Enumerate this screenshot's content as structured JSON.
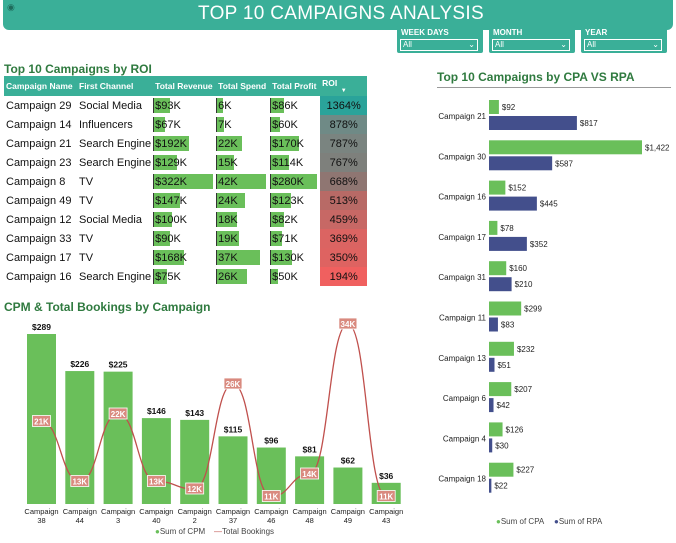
{
  "header": {
    "title": "TOP 10 CAMPAIGNS ANALYSIS"
  },
  "slicers": [
    {
      "label": "WEEK DAYS",
      "value": "All"
    },
    {
      "label": "MONTH",
      "value": "All"
    },
    {
      "label": "YEAR",
      "value": "All"
    }
  ],
  "roi_table": {
    "title": "Top 10 Campaigns by ROI",
    "columns": [
      "Campaign Name",
      "First Channel",
      "Total Revenue",
      "Total Spend",
      "Total Profit",
      "ROI"
    ],
    "rows": [
      {
        "name": "Campaign 29",
        "channel": "Social Media",
        "revenue": "$93K",
        "spend": "6K",
        "profit": "$86K",
        "roi": "1364%",
        "rev_v": 93,
        "spend_v": 6,
        "profit_v": 86,
        "roi_color": "#2aa39a"
      },
      {
        "name": "Campaign 14",
        "channel": "Influencers",
        "revenue": "$67K",
        "spend": "7K",
        "profit": "$60K",
        "roi": "878%",
        "rev_v": 67,
        "spend_v": 7,
        "profit_v": 60,
        "roi_color": "#6f8a86"
      },
      {
        "name": "Campaign 21",
        "channel": "Search Engine",
        "revenue": "$192K",
        "spend": "22K",
        "profit": "$170K",
        "roi": "787%",
        "rev_v": 192,
        "spend_v": 22,
        "profit_v": 170,
        "roi_color": "#7a8480"
      },
      {
        "name": "Campaign 23",
        "channel": "Search Engine",
        "revenue": "$129K",
        "spend": "15K",
        "profit": "$114K",
        "roi": "767%",
        "rev_v": 129,
        "spend_v": 15,
        "profit_v": 114,
        "roi_color": "#7e807c"
      },
      {
        "name": "Campaign 8",
        "channel": "TV",
        "revenue": "$322K",
        "spend": "42K",
        "profit": "$280K",
        "roi": "668%",
        "rev_v": 322,
        "spend_v": 42,
        "profit_v": 280,
        "roi_color": "#8f7672"
      },
      {
        "name": "Campaign 49",
        "channel": "TV",
        "revenue": "$147K",
        "spend": "24K",
        "profit": "$123K",
        "roi": "513%",
        "rev_v": 147,
        "spend_v": 24,
        "profit_v": 123,
        "roi_color": "#b86a66"
      },
      {
        "name": "Campaign 12",
        "channel": "Social Media",
        "revenue": "$100K",
        "spend": "18K",
        "profit": "$82K",
        "roi": "459%",
        "rev_v": 100,
        "spend_v": 18,
        "profit_v": 82,
        "roi_color": "#c76865"
      },
      {
        "name": "Campaign 33",
        "channel": "TV",
        "revenue": "$90K",
        "spend": "19K",
        "profit": "$71K",
        "roi": "369%",
        "rev_v": 90,
        "spend_v": 19,
        "profit_v": 71,
        "roi_color": "#db6462"
      },
      {
        "name": "Campaign 17",
        "channel": "TV",
        "revenue": "$168K",
        "spend": "37K",
        "profit": "$130K",
        "roi": "350%",
        "rev_v": 168,
        "spend_v": 37,
        "profit_v": 130,
        "roi_color": "#de6361"
      },
      {
        "name": "Campaign 16",
        "channel": "Search Engine",
        "revenue": "$75K",
        "spend": "26K",
        "profit": "$50K",
        "roi": "194%",
        "rev_v": 75,
        "spend_v": 26,
        "profit_v": 50,
        "roi_color": "#f0605f"
      }
    ]
  },
  "chart_data": [
    {
      "type": "bar",
      "title": "Top 10 Campaigns by CPA VS RPA",
      "orientation": "horizontal",
      "categories": [
        "Campaign 21",
        "Campaign 30",
        "Campaign 16",
        "Campaign 17",
        "Campaign 31",
        "Campaign 11",
        "Campaign 13",
        "Campaign 6",
        "Campaign 4",
        "Campaign 18"
      ],
      "series": [
        {
          "name": "Sum of CPA",
          "color": "#6abf5a",
          "values": [
            92,
            1422,
            152,
            78,
            160,
            299,
            232,
            207,
            126,
            227
          ],
          "labels": [
            "$92",
            "$1,422",
            "$152",
            "$78",
            "$160",
            "$299",
            "$232",
            "$207",
            "$126",
            "$227"
          ]
        },
        {
          "name": "Sum of RPA",
          "color": "#434f8c",
          "values": [
            817,
            587,
            445,
            352,
            210,
            83,
            51,
            42,
            30,
            22
          ],
          "labels": [
            "$817",
            "$587",
            "$445",
            "$352",
            "$210",
            "$83",
            "$51",
            "$42",
            "$30",
            "$22"
          ]
        }
      ],
      "legend": "bottom-center"
    },
    {
      "type": "bar",
      "title": "CPM & Total Bookings by Campaign",
      "categories": [
        "Campaign 38",
        "Campaign 44",
        "Campaign 3",
        "Campaign 40",
        "Campaign 2",
        "Campaign 37",
        "Campaign 46",
        "Campaign 48",
        "Campaign 49",
        "Campaign 43"
      ],
      "category_lines": [
        [
          "Campaign",
          "38"
        ],
        [
          "Campaign",
          "44"
        ],
        [
          "Campaign",
          "3"
        ],
        [
          "Campaign",
          "40"
        ],
        [
          "Campaign",
          "2"
        ],
        [
          "Campaign",
          "37"
        ],
        [
          "Campaign",
          "46"
        ],
        [
          "Campaign",
          "48"
        ],
        [
          "Campaign",
          "49"
        ],
        [
          "Campaign",
          "43"
        ]
      ],
      "series": [
        {
          "name": "Sum of CPM",
          "kind": "bar",
          "color": "#6abf5a",
          "values": [
            289,
            226,
            225,
            146,
            143,
            115,
            96,
            81,
            62,
            36
          ],
          "labels": [
            "$289",
            "$226",
            "$225",
            "$146",
            "$143",
            "$115",
            "$96",
            "$81",
            "$62",
            "$36"
          ]
        },
        {
          "name": "Total Bookings",
          "kind": "line",
          "color": "#c0504d",
          "values": [
            21,
            13,
            22,
            13,
            12,
            26,
            11,
            14,
            34,
            11
          ],
          "labels": [
            "21K",
            "13K",
            "22K",
            "13K",
            "12K",
            "26K",
            "11K",
            "14K",
            "34K",
            "11K"
          ]
        }
      ],
      "legend": "bottom-center"
    }
  ]
}
